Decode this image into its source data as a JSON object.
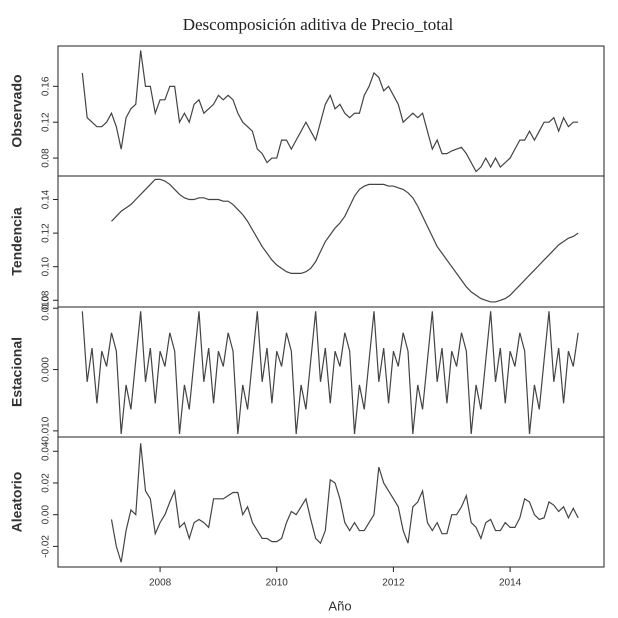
{
  "chart_data": {
    "type": "line",
    "title": "Descomposición aditiva de Precio_total",
    "xlabel": "Año",
    "color": "#444444",
    "xlim": [
      2006.25,
      2015.61
    ],
    "xticks": [
      2008,
      2010,
      2012,
      2014
    ],
    "x": [
      2006.667,
      2006.75,
      2006.833,
      2006.917,
      2007,
      2007.083,
      2007.167,
      2007.25,
      2007.333,
      2007.417,
      2007.5,
      2007.583,
      2007.667,
      2007.75,
      2007.833,
      2007.917,
      2008,
      2008.083,
      2008.167,
      2008.25,
      2008.333,
      2008.417,
      2008.5,
      2008.583,
      2008.667,
      2008.75,
      2008.833,
      2008.917,
      2009,
      2009.083,
      2009.167,
      2009.25,
      2009.333,
      2009.417,
      2009.5,
      2009.583,
      2009.667,
      2009.75,
      2009.833,
      2009.917,
      2010,
      2010.083,
      2010.167,
      2010.25,
      2010.333,
      2010.417,
      2010.5,
      2010.583,
      2010.667,
      2010.75,
      2010.833,
      2010.917,
      2011,
      2011.083,
      2011.167,
      2011.25,
      2011.333,
      2011.417,
      2011.5,
      2011.583,
      2011.667,
      2011.75,
      2011.833,
      2011.917,
      2012,
      2012.083,
      2012.167,
      2012.25,
      2012.333,
      2012.417,
      2012.5,
      2012.583,
      2012.667,
      2012.75,
      2012.833,
      2012.917,
      2013,
      2013.083,
      2013.167,
      2013.25,
      2013.333,
      2013.417,
      2013.5,
      2013.583,
      2013.667,
      2013.75,
      2013.833,
      2013.917,
      2014,
      2014.083,
      2014.167,
      2014.25,
      2014.333,
      2014.417,
      2014.5,
      2014.583,
      2014.667,
      2014.75,
      2014.833,
      2014.917,
      2015,
      2015.083,
      2015.167
    ],
    "panels": [
      {
        "ylabel": "Observado",
        "ylim": [
          0.06,
          0.205
        ],
        "yticks": [
          0.08,
          0.12,
          0.16
        ],
        "values": [
          0.175,
          0.125,
          0.12,
          0.115,
          0.115,
          0.12,
          0.13,
          0.115,
          0.09,
          0.125,
          0.135,
          0.14,
          0.2,
          0.16,
          0.16,
          0.13,
          0.145,
          0.145,
          0.16,
          0.16,
          0.12,
          0.13,
          0.12,
          0.14,
          0.145,
          0.13,
          0.135,
          0.14,
          0.15,
          0.145,
          0.15,
          0.145,
          0.13,
          0.12,
          0.115,
          0.11,
          0.09,
          0.085,
          0.075,
          0.08,
          0.08,
          0.1,
          0.1,
          0.09,
          0.1,
          0.11,
          0.12,
          0.11,
          0.1,
          0.12,
          0.14,
          0.15,
          0.135,
          0.14,
          0.13,
          0.125,
          0.13,
          0.13,
          0.15,
          0.16,
          0.175,
          0.17,
          0.155,
          0.16,
          0.15,
          0.14,
          0.12,
          0.125,
          0.13,
          0.125,
          0.13,
          0.11,
          0.09,
          0.1,
          0.085,
          0.085,
          0.088,
          0.09,
          0.092,
          0.085,
          0.075,
          0.065,
          0.07,
          0.08,
          0.07,
          0.08,
          0.07,
          0.075,
          0.08,
          0.09,
          0.1,
          0.1,
          0.11,
          0.1,
          0.11,
          0.12,
          0.12,
          0.125,
          0.11,
          0.125,
          0.115,
          0.12,
          0.12
        ]
      },
      {
        "ylabel": "Tendencia",
        "ylim": [
          0.076,
          0.154
        ],
        "yticks": [
          0.08,
          {
            "value": 0.1,
            "label": "0.10"
          },
          0.12,
          0.14
        ],
        "values": [
          null,
          null,
          null,
          null,
          null,
          null,
          0.127,
          0.13,
          0.133,
          0.135,
          0.137,
          0.14,
          0.143,
          0.146,
          0.149,
          0.152,
          0.152,
          0.151,
          0.149,
          0.146,
          0.143,
          0.141,
          0.14,
          0.14,
          0.141,
          0.141,
          0.14,
          0.14,
          0.14,
          0.139,
          0.139,
          0.137,
          0.134,
          0.131,
          0.127,
          0.122,
          0.117,
          0.112,
          0.108,
          0.104,
          0.101,
          0.099,
          0.097,
          0.096,
          0.096,
          0.096,
          0.097,
          0.099,
          0.103,
          0.109,
          0.115,
          0.119,
          0.123,
          0.126,
          0.13,
          0.136,
          0.142,
          0.146,
          0.148,
          0.149,
          0.149,
          0.149,
          0.149,
          0.148,
          0.148,
          0.147,
          0.146,
          0.144,
          0.141,
          0.136,
          0.13,
          0.124,
          0.118,
          0.112,
          0.108,
          0.104,
          0.1,
          0.096,
          0.092,
          0.088,
          0.085,
          0.083,
          0.081,
          0.08,
          0.079,
          0.079,
          0.08,
          0.081,
          0.083,
          0.086,
          0.089,
          0.092,
          0.095,
          0.098,
          0.101,
          0.104,
          0.107,
          0.11,
          0.113,
          0.115,
          0.117,
          0.118,
          0.12
        ]
      },
      {
        "ylabel": "Estacional",
        "ylim": [
          -0.011,
          0.0102
        ],
        "yticks": [
          {
            "value": -0.01,
            "label": "-0.010"
          },
          {
            "value": 0,
            "label": "0.000"
          },
          {
            "value": 0.01,
            "label": "0.010"
          }
        ],
        "values": [
          0.0095,
          -0.002,
          0.0035,
          -0.0055,
          0.003,
          0.0005,
          0.006,
          0.003,
          -0.0105,
          -0.0025,
          -0.0065,
          0.0015,
          0.0095,
          -0.002,
          0.0035,
          -0.0055,
          0.003,
          0.0005,
          0.006,
          0.003,
          -0.0105,
          -0.0025,
          -0.0065,
          0.0015,
          0.0095,
          -0.002,
          0.0035,
          -0.0055,
          0.003,
          0.0005,
          0.006,
          0.003,
          -0.0105,
          -0.0025,
          -0.0065,
          0.0015,
          0.0095,
          -0.002,
          0.0035,
          -0.0055,
          0.003,
          0.0005,
          0.006,
          0.003,
          -0.0105,
          -0.0025,
          -0.0065,
          0.0015,
          0.0095,
          -0.002,
          0.0035,
          -0.0055,
          0.003,
          0.0005,
          0.006,
          0.003,
          -0.0105,
          -0.0025,
          -0.0065,
          0.0015,
          0.0095,
          -0.002,
          0.0035,
          -0.0055,
          0.003,
          0.0005,
          0.006,
          0.003,
          -0.0105,
          -0.0025,
          -0.0065,
          0.0015,
          0.0095,
          -0.002,
          0.0035,
          -0.0055,
          0.003,
          0.0005,
          0.006,
          0.003,
          -0.0105,
          -0.0025,
          -0.0065,
          0.0015,
          0.0095,
          -0.002,
          0.0035,
          -0.0055,
          0.003,
          0.0005,
          0.006,
          0.003,
          -0.0105,
          -0.0025,
          -0.0065,
          0.0015,
          0.0095,
          -0.002,
          0.0035,
          -0.0055,
          0.003,
          0.0005,
          0.006
        ]
      },
      {
        "ylabel": "Aleatorio",
        "ylim": [
          -0.033,
          0.049
        ],
        "yticks": [
          -0.02,
          {
            "value": 0,
            "label": "0.00"
          },
          0.02,
          0.04
        ],
        "values": [
          null,
          null,
          null,
          null,
          null,
          null,
          -0.003,
          -0.02,
          -0.03,
          -0.01,
          0.003,
          0,
          0.045,
          0.015,
          0.01,
          -0.012,
          -0.005,
          0,
          0.008,
          0.015,
          -0.008,
          -0.005,
          -0.015,
          -0.005,
          -0.003,
          -0.005,
          -0.008,
          0.01,
          0.01,
          0.01,
          0.012,
          0.014,
          0.014,
          0,
          0.005,
          -0.005,
          -0.01,
          -0.015,
          -0.015,
          -0.017,
          -0.017,
          -0.015,
          -0.005,
          0.002,
          0,
          0.005,
          0.01,
          -0.003,
          -0.015,
          -0.018,
          -0.01,
          0.022,
          0.02,
          0.01,
          -0.005,
          -0.01,
          -0.005,
          -0.01,
          -0.01,
          -0.005,
          0,
          0.03,
          0.02,
          0.015,
          0.01,
          0.005,
          -0.01,
          -0.018,
          0.005,
          0.008,
          0.015,
          -0.005,
          -0.01,
          -0.005,
          -0.012,
          -0.012,
          0,
          0,
          0.005,
          0.012,
          -0.005,
          -0.008,
          -0.015,
          -0.005,
          -0.003,
          -0.01,
          -0.01,
          -0.005,
          -0.008,
          -0.008,
          -0.002,
          0.01,
          0.008,
          0,
          -0.003,
          -0.002,
          0.008,
          0.006,
          0.002,
          0.005,
          -0.002,
          0.004,
          -0.002
        ]
      }
    ]
  }
}
